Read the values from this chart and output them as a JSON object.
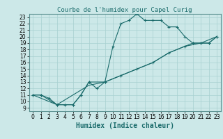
{
  "title": "Courbe de l'humidex pour Capel Curig",
  "xlabel": "Humidex (Indice chaleur)",
  "xlim": [
    -0.5,
    23.5
  ],
  "ylim": [
    8.5,
    23.5
  ],
  "xticks": [
    0,
    1,
    2,
    3,
    4,
    5,
    6,
    7,
    8,
    9,
    10,
    11,
    12,
    13,
    14,
    15,
    16,
    17,
    18,
    19,
    20,
    21,
    22,
    23
  ],
  "yticks": [
    9,
    10,
    11,
    12,
    13,
    14,
    15,
    16,
    17,
    18,
    19,
    20,
    21,
    22,
    23
  ],
  "bg_color": "#cce8e8",
  "line_color": "#1a6b6b",
  "line1_x": [
    0,
    1,
    2,
    3,
    4,
    5,
    6,
    7,
    8,
    9,
    10,
    11,
    12,
    13,
    14,
    15,
    16,
    17,
    18,
    19,
    20,
    21,
    22,
    23
  ],
  "line1_y": [
    11,
    11,
    10.5,
    9.5,
    9.5,
    9.5,
    11,
    13,
    12,
    13,
    18.5,
    22,
    22.5,
    23.5,
    22.5,
    22.5,
    22.5,
    21.5,
    21.5,
    20,
    19,
    19,
    19,
    20
  ],
  "line2_x": [
    0,
    1,
    3,
    5,
    6,
    7,
    9,
    11,
    13,
    15,
    17,
    19,
    20,
    21,
    22,
    23
  ],
  "line2_y": [
    11,
    11,
    9.5,
    9.5,
    11,
    13,
    13,
    14,
    15,
    16,
    17.5,
    18.5,
    19,
    19,
    19,
    20
  ],
  "line3_x": [
    0,
    3,
    7,
    9,
    11,
    13,
    15,
    17,
    19,
    21,
    23
  ],
  "line3_y": [
    11,
    9.5,
    12.5,
    13,
    14,
    15,
    16,
    17.5,
    18.5,
    19,
    20
  ],
  "title_fontsize": 6.5,
  "label_fontsize": 7,
  "tick_fontsize": 5.5
}
